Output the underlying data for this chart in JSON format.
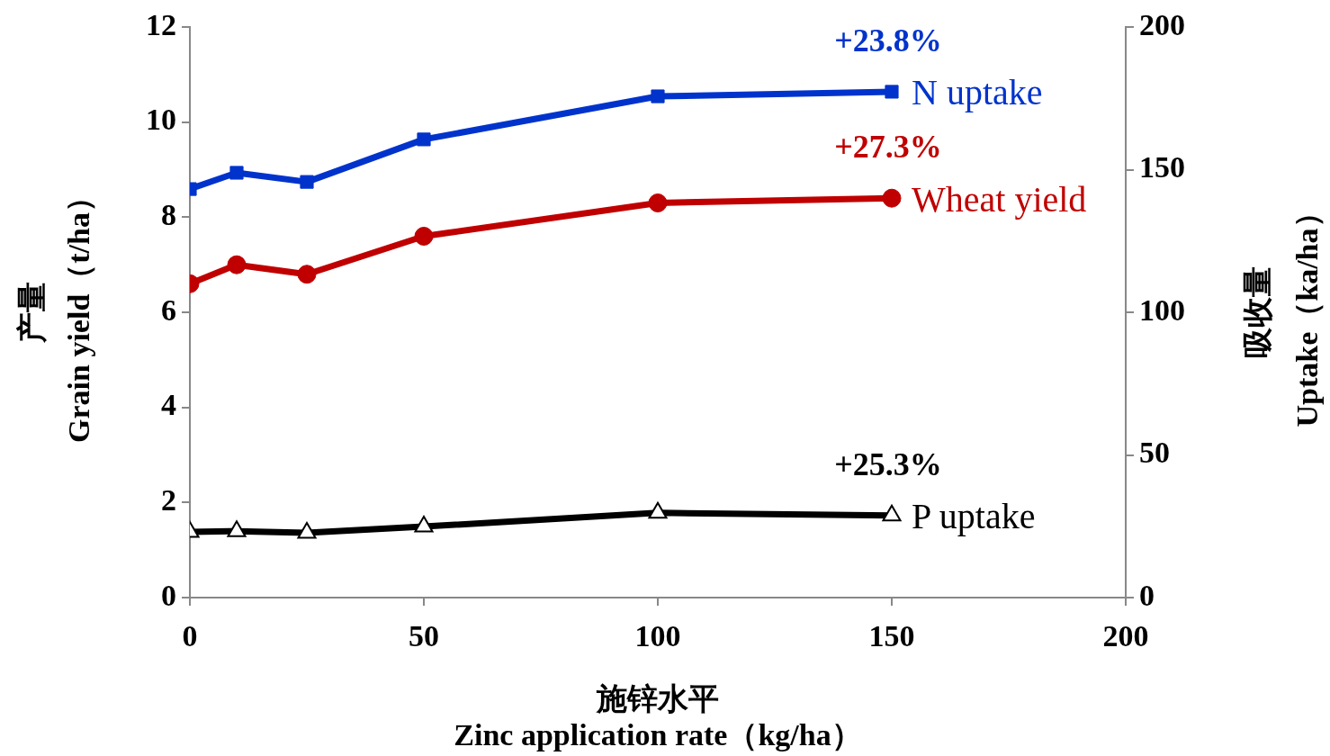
{
  "chart_data": {
    "type": "line",
    "xlabel": "施锌水平\nZinc application rate（kg/ha）",
    "ylabel": "产量\nGrain yield（t/ha）",
    "y2label": "吸收量\nUptake（ka/ha）",
    "x": [
      0,
      10,
      25,
      50,
      100,
      150
    ],
    "xlim": [
      0,
      200
    ],
    "xticks": [
      0,
      50,
      100,
      150,
      200
    ],
    "ylim": [
      0,
      12
    ],
    "yticks": [
      0,
      2,
      4,
      6,
      8,
      10,
      12
    ],
    "y2lim": [
      0,
      200
    ],
    "y2ticks": [
      0,
      50,
      100,
      150,
      200
    ],
    "grid": false,
    "legend": false,
    "line_style": "solid",
    "series": [
      {
        "name": "N uptake",
        "color": "#0033cc",
        "axis": "y2",
        "marker": "square",
        "values": [
          143.2,
          148.9,
          145.7,
          160.6,
          175.7,
          177.3
        ]
      },
      {
        "name": "Wheat yield",
        "color": "#c00000",
        "marker": "circle",
        "values": [
          6.6,
          7.0,
          6.8,
          7.6,
          8.3,
          8.4
        ]
      },
      {
        "name": "P uptake",
        "color": "#000000",
        "axis": "y2",
        "marker": "triangle",
        "values": [
          23.0,
          23.3,
          22.7,
          24.9,
          29.7,
          28.8
        ]
      }
    ],
    "annotations": [
      "+23.8%",
      "+27.3%",
      "+25.3%"
    ]
  }
}
